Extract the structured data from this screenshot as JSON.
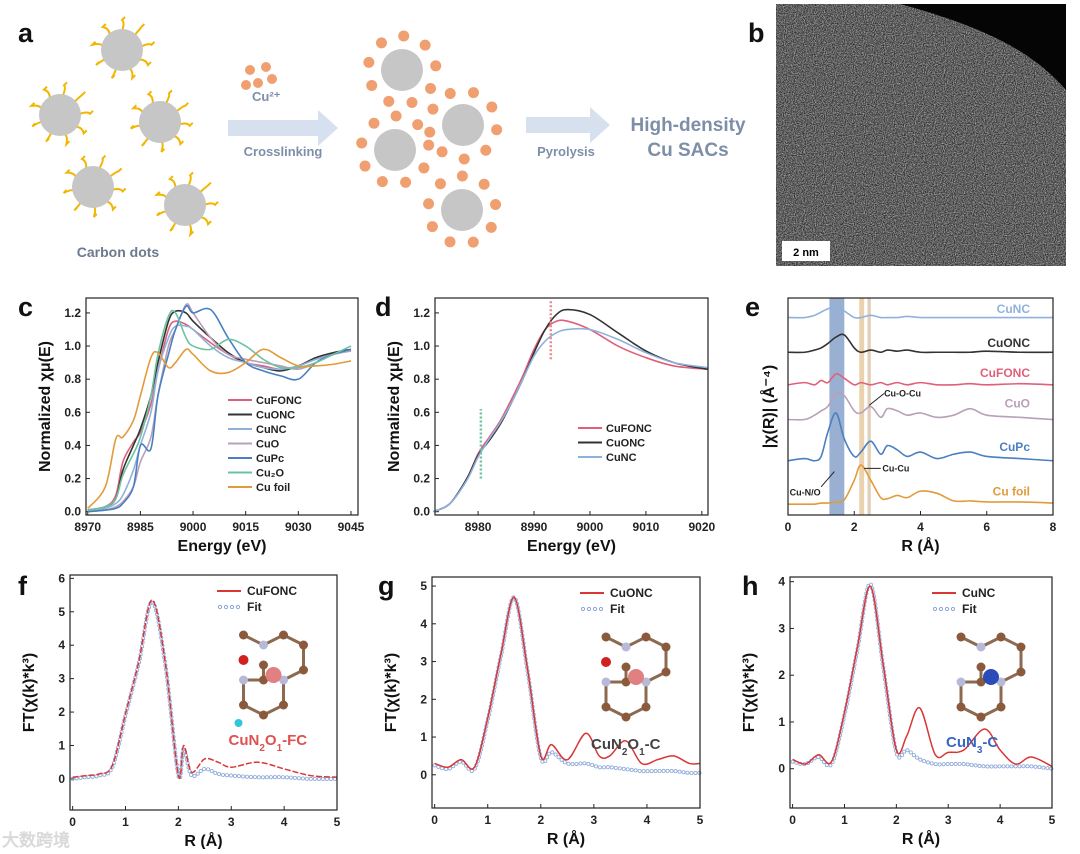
{
  "panel_labels": [
    "a",
    "b",
    "c",
    "d",
    "e",
    "f",
    "g",
    "h"
  ],
  "scheme": {
    "cu_ion": "Cu²⁺",
    "step1": "Crosslinking",
    "step2": "Pyrolysis",
    "product_line1": "High-density",
    "product_line2": "Cu SACs",
    "carbon_dots": "Carbon dots"
  },
  "micrograph": {
    "scale_bar": "2 nm"
  },
  "watermark": "大数跨境",
  "colors": {
    "CuFONC": "#e0607a",
    "CuONC": "#333333",
    "CuNC": "#8fb2dc",
    "CuO": "#b9a0b8",
    "CuPc": "#4a7fc1",
    "Cu2O": "#6cc3a0",
    "Cu foil": "#e39a3a",
    "fit": "#8ca8d8",
    "fitline": "#d93636"
  },
  "chart_data": [
    {
      "id": "c",
      "type": "line",
      "xlabel": "Energy (eV)",
      "ylabel": "Normalized χμ(E)",
      "xlim": [
        8969.5,
        9047
      ],
      "ylim": [
        -0.02,
        1.29
      ],
      "xticks": [
        8970,
        8985,
        9000,
        9015,
        9030,
        9045
      ],
      "yticks": [
        "0.0",
        "0.2",
        "0.4",
        "0.6",
        "0.8",
        "1.0",
        "1.2"
      ],
      "legend_position": "center-right",
      "x": [
        8970,
        8975,
        8978,
        8980,
        8983,
        8985,
        8988,
        8990,
        8993,
        8995,
        8998,
        9000,
        9005,
        9010,
        9015,
        9020,
        9025,
        9030,
        9035,
        9040,
        9045
      ],
      "series": [
        {
          "name": "CuFONC",
          "key": "CuFONC",
          "values": [
            0.01,
            0.03,
            0.1,
            0.3,
            0.42,
            0.48,
            0.65,
            0.85,
            1.1,
            1.15,
            1.13,
            1.1,
            1.02,
            0.95,
            0.9,
            0.88,
            0.86,
            0.88,
            0.92,
            0.95,
            0.98
          ]
        },
        {
          "name": "CuONC",
          "key": "CuONC",
          "values": [
            0.01,
            0.03,
            0.08,
            0.25,
            0.4,
            0.5,
            0.7,
            0.9,
            1.15,
            1.21,
            1.2,
            1.15,
            1.05,
            0.96,
            0.9,
            0.87,
            0.85,
            0.88,
            0.93,
            0.96,
            0.98
          ]
        },
        {
          "name": "CuNC",
          "key": "CuNC",
          "values": [
            0.01,
            0.02,
            0.05,
            0.1,
            0.25,
            0.4,
            0.6,
            0.85,
            1.05,
            1.12,
            1.12,
            1.1,
            1.0,
            0.93,
            0.9,
            0.87,
            0.86,
            0.88,
            0.92,
            0.95,
            0.97
          ]
        },
        {
          "name": "CuO",
          "key": "CuO",
          "values": [
            0.0,
            0.01,
            0.03,
            0.06,
            0.15,
            0.3,
            0.45,
            0.7,
            1.0,
            1.1,
            1.25,
            1.2,
            1.05,
            0.95,
            0.92,
            0.9,
            0.88,
            0.86,
            0.9,
            0.95,
            0.97
          ]
        },
        {
          "name": "CuPc",
          "key": "CuPc",
          "values": [
            0.0,
            0.01,
            0.02,
            0.05,
            0.15,
            0.4,
            0.38,
            0.7,
            0.95,
            1.1,
            1.24,
            1.2,
            1.22,
            1.05,
            0.9,
            0.85,
            0.82,
            0.8,
            0.9,
            0.95,
            0.98
          ]
        },
        {
          "name": "Cu₂O",
          "key": "Cu2O",
          "values": [
            0.01,
            0.03,
            0.08,
            0.22,
            0.35,
            0.45,
            0.7,
            0.95,
            1.18,
            1.2,
            1.05,
            1.0,
            0.98,
            1.04,
            1.0,
            0.92,
            0.87,
            0.87,
            0.9,
            0.95,
            1.0
          ]
        },
        {
          "name": "Cu foil",
          "key": "Cu foil",
          "values": [
            0.02,
            0.15,
            0.44,
            0.45,
            0.55,
            0.7,
            0.93,
            0.96,
            0.87,
            0.9,
            0.98,
            0.95,
            0.85,
            0.84,
            0.9,
            0.98,
            0.93,
            0.88,
            0.88,
            0.89,
            0.91
          ]
        }
      ]
    },
    {
      "id": "d",
      "type": "line",
      "xlabel": "Energy (eV)",
      "ylabel": "Normalized χμ(E)",
      "xlim": [
        8972.3,
        9021.1
      ],
      "ylim": [
        -0.02,
        1.29
      ],
      "xticks": [
        8980,
        8990,
        9000,
        9010,
        9020
      ],
      "yticks": [
        "0.0",
        "0.2",
        "0.4",
        "0.6",
        "0.8",
        "1.0",
        "1.2"
      ],
      "legend_position": "lower-right",
      "x": [
        8972,
        8975,
        8978,
        8980,
        8982,
        8984,
        8986,
        8988,
        8990,
        8992,
        8994,
        8996,
        9000,
        9005,
        9010,
        9015,
        9021
      ],
      "series": [
        {
          "name": "CuFONC",
          "key": "CuFONC",
          "values": [
            0.0,
            0.05,
            0.2,
            0.35,
            0.45,
            0.55,
            0.68,
            0.82,
            0.98,
            1.1,
            1.15,
            1.15,
            1.1,
            1.0,
            0.93,
            0.88,
            0.86
          ]
        },
        {
          "name": "CuONC",
          "key": "CuONC",
          "values": [
            0.0,
            0.05,
            0.2,
            0.34,
            0.43,
            0.53,
            0.66,
            0.8,
            0.96,
            1.1,
            1.19,
            1.22,
            1.19,
            1.08,
            0.97,
            0.9,
            0.86
          ]
        },
        {
          "name": "CuNC",
          "key": "CuNC",
          "values": [
            0.0,
            0.05,
            0.19,
            0.33,
            0.44,
            0.54,
            0.66,
            0.8,
            0.94,
            1.03,
            1.08,
            1.1,
            1.1,
            1.04,
            0.96,
            0.9,
            0.87
          ]
        }
      ],
      "markers": [
        {
          "x": 8980.5,
          "y": [
            0.2,
            0.62
          ],
          "color": "#6cc3a0"
        },
        {
          "x": 8993,
          "y": [
            0.92,
            1.28
          ],
          "color": "#e88a8a"
        }
      ]
    },
    {
      "id": "e",
      "type": "line",
      "xlabel": "R (Å)",
      "ylabel": "|χ(R)| (Å⁻⁴)",
      "xlim": [
        0,
        8
      ],
      "ylim": [
        0,
        10
      ],
      "xticks": [
        0,
        2,
        4,
        6,
        8
      ],
      "x": [
        0,
        0.5,
        0.8,
        1.0,
        1.2,
        1.45,
        1.7,
        2.0,
        2.2,
        2.5,
        2.8,
        3.0,
        3.3,
        3.6,
        4.0,
        4.5,
        5.0,
        5.5,
        6.0,
        7.0,
        8.0
      ],
      "series": [
        {
          "name": "CuNC",
          "key": "CuNC",
          "values": [
            9.1,
            9.1,
            9.2,
            9.35,
            9.5,
            9.6,
            9.4,
            9.1,
            9.1,
            9.2,
            9.1,
            9.1,
            9.1,
            9.15,
            9.1,
            9.1,
            9.1,
            9.1,
            9.1,
            9.1,
            9.1
          ]
        },
        {
          "name": "CuONC",
          "key": "CuONC",
          "values": [
            7.5,
            7.5,
            7.6,
            7.7,
            7.9,
            8.2,
            8.3,
            7.7,
            7.5,
            7.6,
            7.5,
            7.6,
            7.55,
            7.6,
            7.5,
            7.5,
            7.5,
            7.5,
            7.55,
            7.5,
            7.5
          ]
        },
        {
          "name": "CuFONC",
          "key": "CuFONC",
          "values": [
            6.0,
            6.1,
            6.0,
            6.2,
            6.1,
            6.5,
            6.3,
            6.0,
            6.1,
            6.0,
            6.1,
            6.0,
            6.1,
            6.0,
            6.1,
            6.0,
            6.0,
            6.05,
            6.0,
            6.05,
            6.0
          ]
        },
        {
          "name": "CuO",
          "key": "CuO",
          "values": [
            4.4,
            4.4,
            4.6,
            4.8,
            5.0,
            5.6,
            5.5,
            4.8,
            4.7,
            5.0,
            4.5,
            4.9,
            4.8,
            4.6,
            4.7,
            4.5,
            4.6,
            4.9,
            4.6,
            4.5,
            4.4
          ]
        },
        {
          "name": "CuPc",
          "key": "CuPc",
          "values": [
            2.5,
            2.6,
            2.5,
            2.7,
            3.8,
            4.7,
            3.5,
            2.7,
            2.9,
            3.4,
            2.8,
            3.2,
            3.0,
            2.7,
            2.9,
            2.6,
            2.8,
            2.9,
            2.7,
            2.6,
            2.5
          ]
        },
        {
          "name": "Cu foil",
          "key": "Cu foil",
          "values": [
            0.5,
            0.5,
            0.5,
            0.55,
            0.55,
            0.6,
            0.7,
            1.6,
            2.3,
            1.6,
            0.8,
            0.75,
            0.9,
            0.8,
            1.1,
            1.0,
            0.65,
            0.65,
            0.6,
            0.6,
            0.55
          ]
        }
      ],
      "bands": [
        {
          "from": 1.25,
          "to": 1.7,
          "color": "#7f9cc8"
        },
        {
          "from": 2.15,
          "to": 2.3,
          "color": "#e6c79a"
        },
        {
          "from": 2.4,
          "to": 2.5,
          "color": "#d9c3a4"
        }
      ],
      "annotations": [
        "Cu-O-Cu",
        "Cu-Cu",
        "Cu-N/O"
      ]
    },
    {
      "id": "f",
      "type": "line",
      "xlabel": "R (Å)",
      "ylabel": "FT(χ(k)*k³)",
      "xlim": [
        -0.05,
        5
      ],
      "ylim": [
        -0.93,
        6.1
      ],
      "xticks": [
        0,
        1,
        2,
        3,
        4,
        5
      ],
      "yticks": [
        0,
        1,
        2,
        3,
        4,
        5,
        6
      ],
      "legend": [
        "CuFONC",
        "Fit"
      ],
      "structure_label": {
        "base": "CuN",
        "s1": "2",
        "mid": "O",
        "s2": "1",
        "suffix": "-FC"
      },
      "data": {
        "x": [
          0,
          0.25,
          0.5,
          0.75,
          1.0,
          1.25,
          1.5,
          1.75,
          2.0,
          2.1,
          2.25,
          2.5,
          2.75,
          3.0,
          3.5,
          4.0,
          4.5,
          5.0
        ],
        "y": [
          0.05,
          0.1,
          0.15,
          0.4,
          1.95,
          3.5,
          5.35,
          3.5,
          0.1,
          1.0,
          0.2,
          0.6,
          0.5,
          0.35,
          0.5,
          0.3,
          0.1,
          0.05
        ]
      },
      "fit": {
        "x": [
          0,
          0.25,
          0.5,
          0.75,
          1.0,
          1.25,
          1.5,
          1.75,
          2.0,
          2.1,
          2.25,
          2.5,
          2.75,
          3.0,
          3.5,
          4.0,
          4.5,
          5.0
        ],
        "y": [
          0.0,
          0.05,
          0.1,
          0.35,
          1.9,
          3.45,
          5.3,
          3.45,
          0.1,
          0.9,
          0.1,
          0.3,
          0.15,
          0.1,
          0.05,
          0.05,
          0.0,
          0.0
        ]
      }
    },
    {
      "id": "g",
      "type": "line",
      "xlabel": "R (Å)",
      "ylabel": "FT(χ(k)*k³)",
      "xlim": [
        -0.05,
        5
      ],
      "ylim": [
        -0.88,
        5.24
      ],
      "xticks": [
        0,
        1,
        2,
        3,
        4,
        5
      ],
      "yticks": [
        0,
        1,
        2,
        3,
        4,
        5
      ],
      "legend": [
        "CuONC",
        "Fit"
      ],
      "structure_label": {
        "base": "CuN",
        "s1": "2",
        "mid": "O",
        "s2": "1",
        "suffix": "-C"
      },
      "data": {
        "x": [
          0,
          0.25,
          0.5,
          0.75,
          1.0,
          1.25,
          1.5,
          1.75,
          2.0,
          2.2,
          2.5,
          2.85,
          3.1,
          3.3,
          3.6,
          3.9,
          4.2,
          4.5,
          4.8,
          5.0
        ],
        "y": [
          0.3,
          0.2,
          0.4,
          0.2,
          1.5,
          3.2,
          4.7,
          2.8,
          0.5,
          0.8,
          0.4,
          1.1,
          0.5,
          0.5,
          0.9,
          0.3,
          0.4,
          0.5,
          0.3,
          0.3
        ]
      },
      "fit": {
        "x": [
          0,
          0.25,
          0.5,
          0.75,
          1.0,
          1.25,
          1.5,
          1.75,
          2.0,
          2.2,
          2.5,
          2.85,
          3.1,
          3.3,
          3.6,
          3.9,
          4.2,
          4.5,
          4.8,
          5.0
        ],
        "y": [
          0.25,
          0.15,
          0.35,
          0.15,
          1.45,
          3.15,
          4.7,
          2.75,
          0.45,
          0.6,
          0.3,
          0.3,
          0.2,
          0.2,
          0.15,
          0.1,
          0.1,
          0.1,
          0.05,
          0.05
        ]
      }
    },
    {
      "id": "h",
      "type": "line",
      "xlabel": "R (Å)",
      "ylabel": "FT(χ(k)*k³)",
      "xlim": [
        -0.05,
        5
      ],
      "ylim": [
        -0.84,
        4.1
      ],
      "xticks": [
        0,
        1,
        2,
        3,
        4,
        5
      ],
      "yticks": [
        0,
        1,
        2,
        3,
        4
      ],
      "legend": [
        "CuNC",
        "Fit"
      ],
      "structure_label": {
        "base": "CuN",
        "s1": "3",
        "mid": "",
        "s2": "",
        "suffix": "-C"
      },
      "data": {
        "x": [
          0,
          0.25,
          0.5,
          0.75,
          1.0,
          1.25,
          1.5,
          1.75,
          2.0,
          2.2,
          2.45,
          2.75,
          3.0,
          3.3,
          3.7,
          4.0,
          4.3,
          4.6,
          5.0
        ],
        "y": [
          0.2,
          0.1,
          0.3,
          0.15,
          1.2,
          2.6,
          3.9,
          2.2,
          0.4,
          0.7,
          1.3,
          0.3,
          0.35,
          0.4,
          0.85,
          0.4,
          0.1,
          0.25,
          0.05
        ]
      },
      "fit": {
        "x": [
          0,
          0.25,
          0.5,
          0.75,
          1.0,
          1.25,
          1.5,
          1.75,
          2.0,
          2.2,
          2.45,
          2.75,
          3.0,
          3.3,
          3.7,
          4.0,
          4.3,
          4.6,
          5.0
        ],
        "y": [
          0.15,
          0.1,
          0.25,
          0.1,
          1.15,
          2.55,
          3.95,
          2.15,
          0.35,
          0.4,
          0.2,
          0.1,
          0.1,
          0.1,
          0.05,
          0.05,
          0.05,
          0.05,
          0.0
        ]
      }
    }
  ]
}
